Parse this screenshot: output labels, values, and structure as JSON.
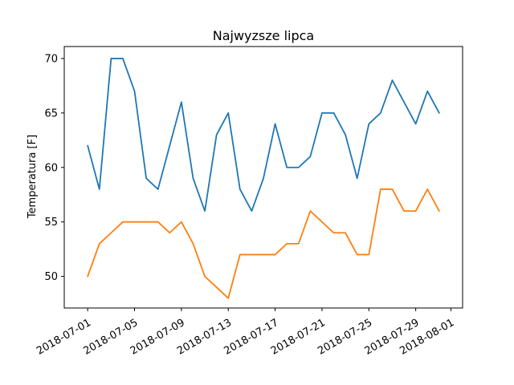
{
  "chart_data": {
    "type": "line",
    "title": "Najwyzsze lipca",
    "xlabel": "",
    "ylabel": "Temperatura [F]",
    "x": [
      "2018-07-01",
      "2018-07-02",
      "2018-07-03",
      "2018-07-04",
      "2018-07-05",
      "2018-07-06",
      "2018-07-07",
      "2018-07-08",
      "2018-07-09",
      "2018-07-10",
      "2018-07-11",
      "2018-07-12",
      "2018-07-13",
      "2018-07-14",
      "2018-07-15",
      "2018-07-16",
      "2018-07-17",
      "2018-07-18",
      "2018-07-19",
      "2018-07-20",
      "2018-07-21",
      "2018-07-22",
      "2018-07-23",
      "2018-07-24",
      "2018-07-25",
      "2018-07-26",
      "2018-07-27",
      "2018-07-28",
      "2018-07-29",
      "2018-07-30",
      "2018-07-31"
    ],
    "series": [
      {
        "color": "#1f77b4",
        "values": [
          62,
          58,
          70,
          70,
          67,
          59,
          58,
          62,
          66,
          59,
          56,
          63,
          65,
          58,
          56,
          59,
          64,
          60,
          60,
          61,
          65,
          65,
          63,
          59,
          64,
          65,
          68,
          66,
          64,
          67,
          65
        ]
      },
      {
        "color": "#ff7f0e",
        "values": [
          50,
          53,
          54,
          55,
          55,
          55,
          55,
          54,
          55,
          53,
          50,
          49,
          48,
          52,
          52,
          52,
          52,
          53,
          53,
          56,
          55,
          54,
          54,
          52,
          52,
          58,
          58,
          56,
          56,
          58,
          56
        ]
      }
    ],
    "xticks": [
      "2018-07-01",
      "2018-07-05",
      "2018-07-09",
      "2018-07-13",
      "2018-07-17",
      "2018-07-21",
      "2018-07-25",
      "2018-07-29",
      "2018-08-01"
    ],
    "yticks": [
      50,
      55,
      60,
      65,
      70
    ],
    "xlim": [
      "2018-06-29",
      "2018-08-02"
    ],
    "ylim": [
      47.1,
      71.1
    ],
    "grid": false,
    "legend": false
  }
}
